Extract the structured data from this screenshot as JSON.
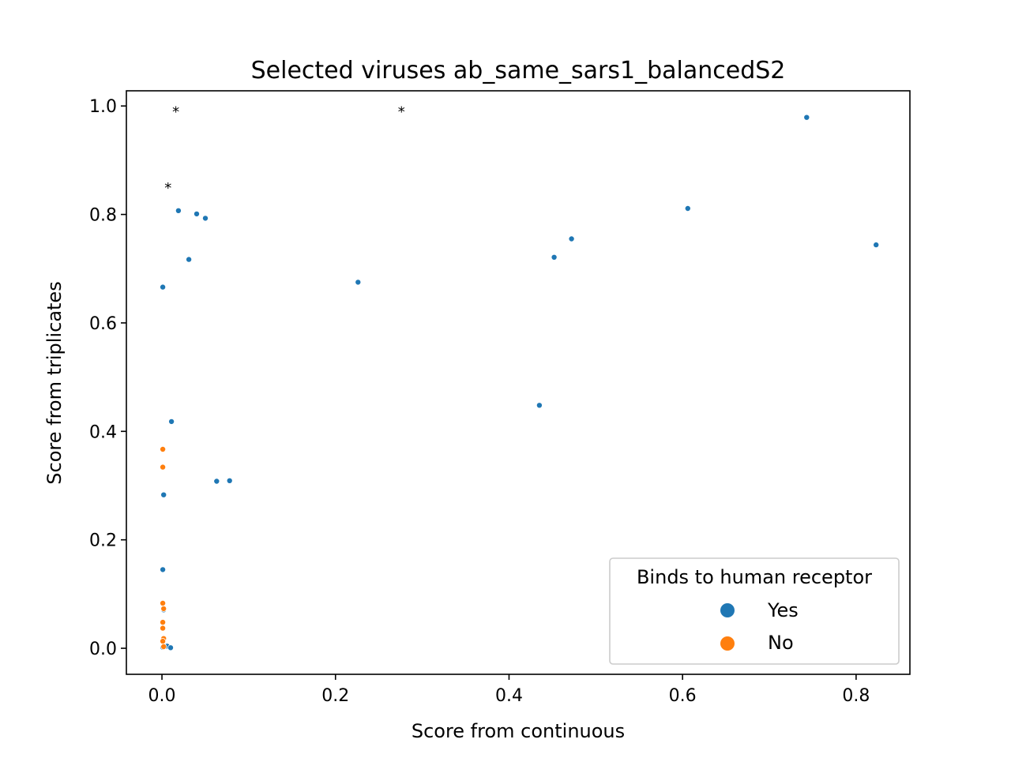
{
  "chart_data": {
    "type": "scatter",
    "title": "Selected viruses ab_same_sars1_balancedS2",
    "xlabel": "Score from continuous",
    "ylabel": "Score from triplicates",
    "xlim": [
      -0.041,
      0.862
    ],
    "ylim": [
      -0.048,
      1.028
    ],
    "xticks": [
      0.0,
      0.2,
      0.4,
      0.6,
      0.8
    ],
    "yticks": [
      0.0,
      0.2,
      0.4,
      0.6,
      0.8,
      1.0
    ],
    "xtick_labels": [
      "0.0",
      "0.2",
      "0.4",
      "0.6",
      "0.8"
    ],
    "ytick_labels": [
      "0.0",
      "0.2",
      "0.4",
      "0.6",
      "0.8",
      "1.0"
    ],
    "grid": false,
    "legend": {
      "title": "Binds to human receptor",
      "placement": "lower-right",
      "entries": [
        "Yes",
        "No"
      ]
    },
    "series": [
      {
        "name": "Yes",
        "color": "#1f77b4",
        "points": [
          [
            0.743,
            0.979
          ],
          [
            0.823,
            0.744
          ],
          [
            0.606,
            0.811
          ],
          [
            0.472,
            0.755
          ],
          [
            0.452,
            0.721
          ],
          [
            0.435,
            0.448
          ],
          [
            0.226,
            0.675
          ],
          [
            0.019,
            0.807
          ],
          [
            0.04,
            0.801
          ],
          [
            0.05,
            0.793
          ],
          [
            0.031,
            0.717
          ],
          [
            0.001,
            0.666
          ],
          [
            0.011,
            0.418
          ],
          [
            0.063,
            0.308
          ],
          [
            0.078,
            0.309
          ],
          [
            0.002,
            0.283
          ],
          [
            0.001,
            0.145
          ],
          [
            0.002,
            0.071
          ],
          [
            0.006,
            0.004
          ],
          [
            0.01,
            0.001
          ],
          [
            0.001,
            0.002
          ]
        ]
      },
      {
        "name": "No",
        "color": "#ff7f0e",
        "points": [
          [
            0.001,
            0.367
          ],
          [
            0.001,
            0.334
          ],
          [
            0.001,
            0.083
          ],
          [
            0.002,
            0.073
          ],
          [
            0.001,
            0.048
          ],
          [
            0.001,
            0.037
          ],
          [
            0.002,
            0.018
          ],
          [
            0.001,
            0.013
          ],
          [
            0.002,
            0.003
          ]
        ]
      }
    ],
    "annotations": [
      {
        "text": "*",
        "x": 0.016,
        "y": 0.995
      },
      {
        "text": "*",
        "x": 0.276,
        "y": 0.995
      },
      {
        "text": "*",
        "x": 0.007,
        "y": 0.855
      }
    ]
  }
}
